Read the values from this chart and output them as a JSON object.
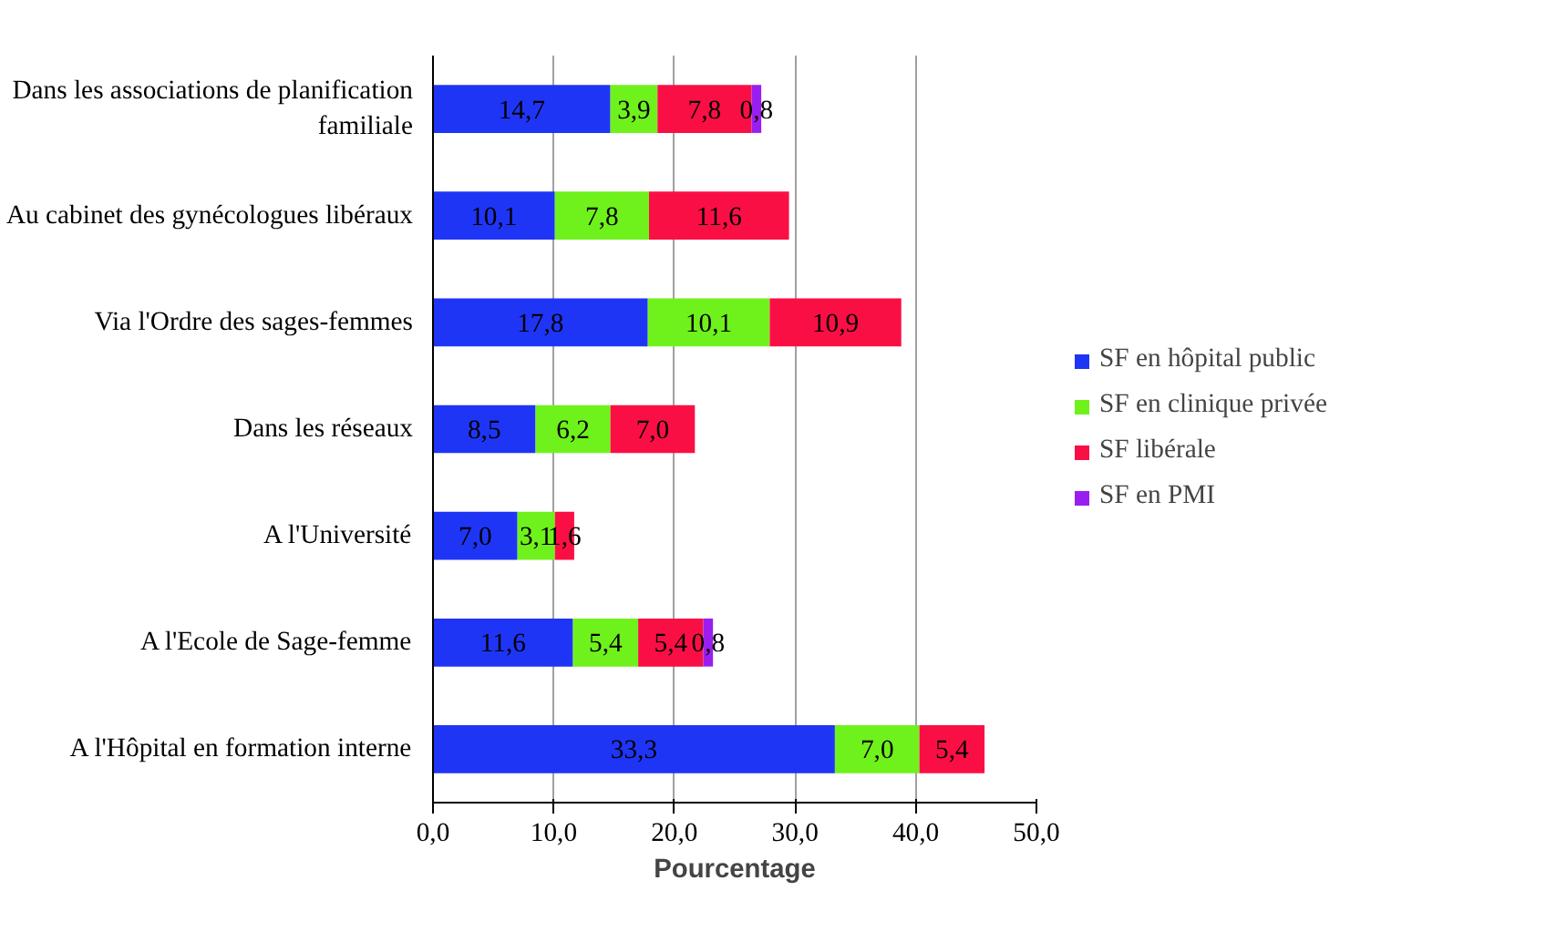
{
  "chart_data": {
    "type": "bar",
    "orientation": "horizontal",
    "stacked": true,
    "xlabel": "Pourcentage",
    "categories": [
      "Dans les associations de planification familiale",
      "Au cabinet des gynécologues libéraux",
      "Via l'Ordre des sages-femmes",
      "Dans les réseaux",
      "A l'Université",
      "A l'Ecole de Sage-femme",
      "A l'Hôpital en formation interne"
    ],
    "series": [
      {
        "name": "SF en hôpital public",
        "color": "#1f35f5",
        "values": [
          14.7,
          10.1,
          17.8,
          8.5,
          7.0,
          11.6,
          33.3
        ],
        "value_labels": [
          "14,7",
          "10,1",
          "17,8",
          "8,5",
          "7,0",
          "11,6",
          "33,3"
        ]
      },
      {
        "name": "SF en clinique privée",
        "color": "#6ff21c",
        "values": [
          3.9,
          7.8,
          10.1,
          6.2,
          3.1,
          5.4,
          7.0
        ],
        "value_labels": [
          "3,9",
          "7,8",
          "10,1",
          "6,2",
          "3,1",
          "5,4",
          "7,0"
        ]
      },
      {
        "name": "SF libérale",
        "color": "#fa0f45",
        "values": [
          7.8,
          11.6,
          10.9,
          7.0,
          1.6,
          5.4,
          5.4
        ],
        "value_labels": [
          "7,8",
          "11,6",
          "10,9",
          "7,0",
          "1,6",
          "5,4",
          "5,4"
        ]
      },
      {
        "name": "SF en PMI",
        "color": "#9b1ef0",
        "values": [
          0.8,
          null,
          null,
          null,
          null,
          0.8,
          null
        ],
        "value_labels": [
          "0,8",
          null,
          null,
          null,
          null,
          "0,8",
          null
        ]
      }
    ],
    "xlim": [
      0,
      50
    ],
    "xticks": [
      {
        "value": 0,
        "label": "0,0"
      },
      {
        "value": 10,
        "label": "10,0"
      },
      {
        "value": 20,
        "label": "20,0"
      },
      {
        "value": 30,
        "label": "30,0"
      },
      {
        "value": 40,
        "label": "40,0"
      },
      {
        "value": 50,
        "label": "50,0"
      }
    ],
    "grid": "x",
    "legend": "right"
  }
}
